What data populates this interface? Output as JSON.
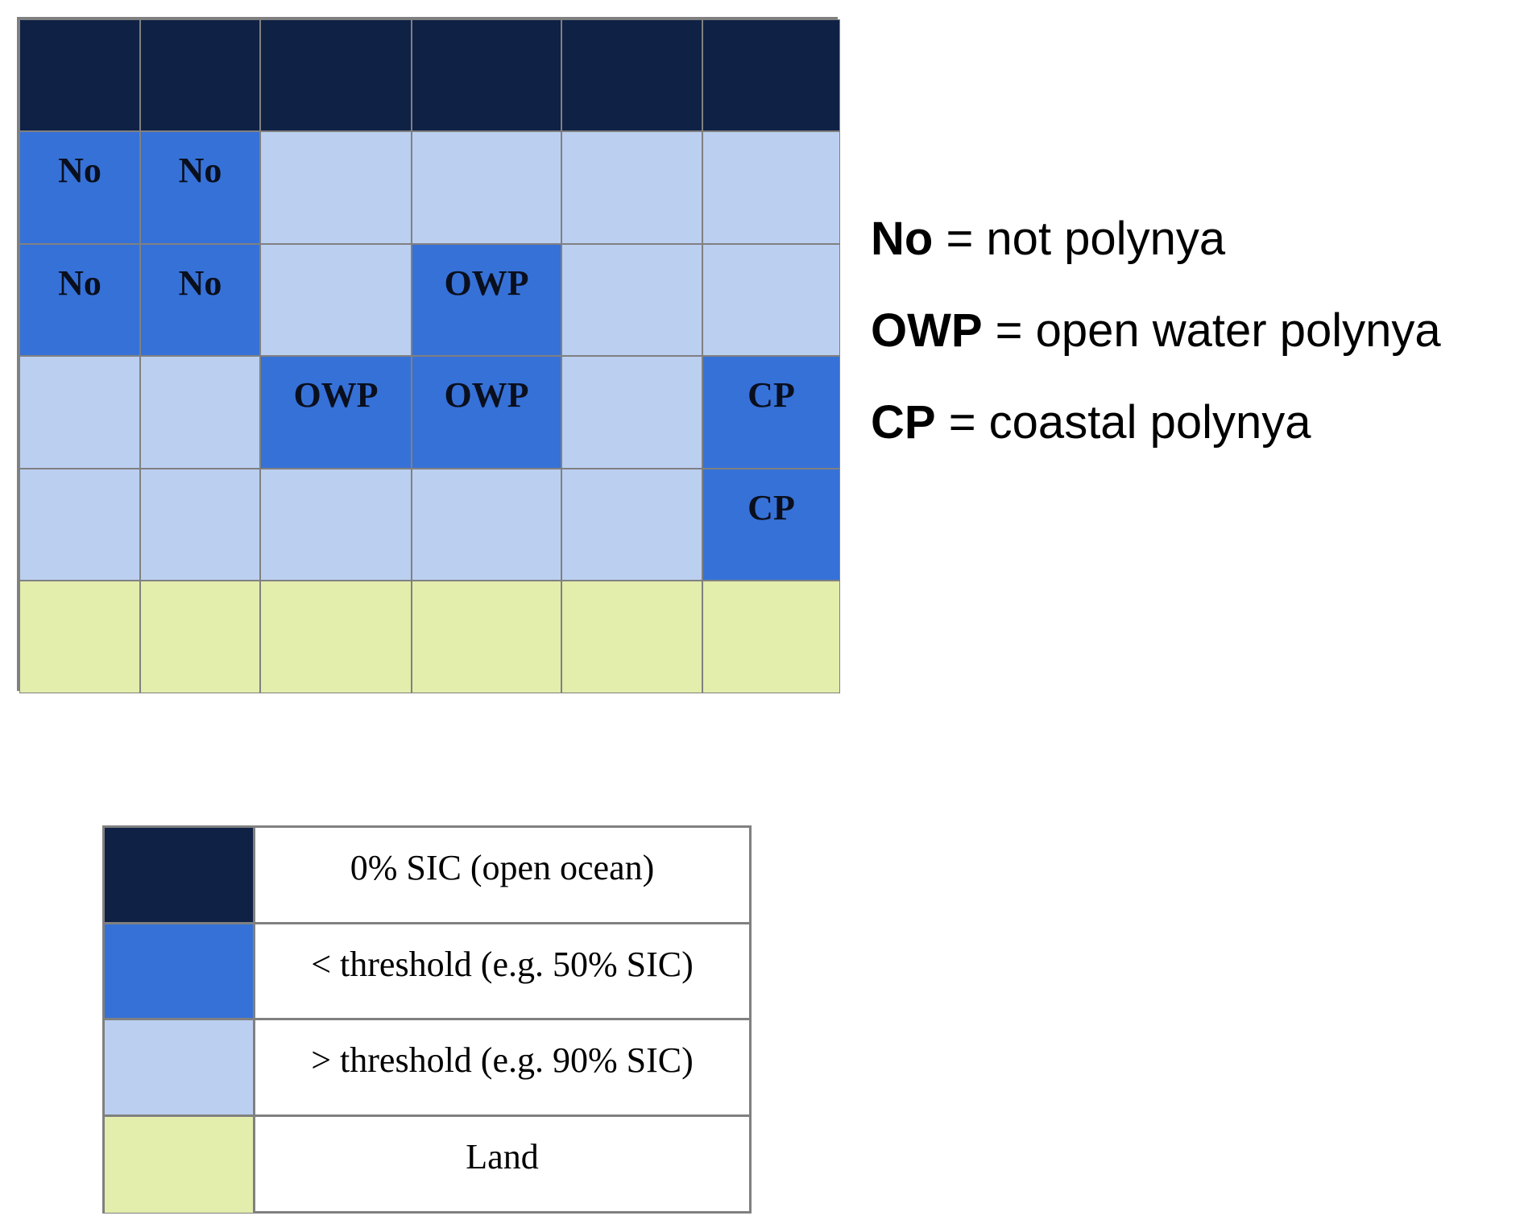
{
  "colors": {
    "open_ocean": "#0f2145",
    "below_threshold": "#3671d7",
    "above_threshold": "#bbcff0",
    "land": "#e3edac",
    "border": "#808080"
  },
  "grid": {
    "rows": [
      [
        {
          "c": "open_ocean",
          "t": ""
        },
        {
          "c": "open_ocean",
          "t": ""
        },
        {
          "c": "open_ocean",
          "t": ""
        },
        {
          "c": "open_ocean",
          "t": ""
        },
        {
          "c": "open_ocean",
          "t": ""
        },
        {
          "c": "open_ocean",
          "t": ""
        }
      ],
      [
        {
          "c": "below_threshold",
          "t": "No"
        },
        {
          "c": "below_threshold",
          "t": "No"
        },
        {
          "c": "above_threshold",
          "t": ""
        },
        {
          "c": "above_threshold",
          "t": ""
        },
        {
          "c": "above_threshold",
          "t": ""
        },
        {
          "c": "above_threshold",
          "t": ""
        }
      ],
      [
        {
          "c": "below_threshold",
          "t": "No"
        },
        {
          "c": "below_threshold",
          "t": "No"
        },
        {
          "c": "above_threshold",
          "t": ""
        },
        {
          "c": "below_threshold",
          "t": "OWP"
        },
        {
          "c": "above_threshold",
          "t": ""
        },
        {
          "c": "above_threshold",
          "t": ""
        }
      ],
      [
        {
          "c": "above_threshold",
          "t": ""
        },
        {
          "c": "above_threshold",
          "t": ""
        },
        {
          "c": "below_threshold",
          "t": "OWP"
        },
        {
          "c": "below_threshold",
          "t": "OWP"
        },
        {
          "c": "above_threshold",
          "t": ""
        },
        {
          "c": "below_threshold",
          "t": "CP"
        }
      ],
      [
        {
          "c": "above_threshold",
          "t": ""
        },
        {
          "c": "above_threshold",
          "t": ""
        },
        {
          "c": "above_threshold",
          "t": ""
        },
        {
          "c": "above_threshold",
          "t": ""
        },
        {
          "c": "above_threshold",
          "t": ""
        },
        {
          "c": "below_threshold",
          "t": "CP"
        }
      ],
      [
        {
          "c": "land",
          "t": ""
        },
        {
          "c": "land",
          "t": ""
        },
        {
          "c": "land",
          "t": ""
        },
        {
          "c": "land",
          "t": ""
        },
        {
          "c": "land",
          "t": ""
        },
        {
          "c": "land",
          "t": ""
        }
      ]
    ]
  },
  "key": [
    {
      "abbr": "No",
      "desc": " = not polynya"
    },
    {
      "abbr": "OWP",
      "desc": " = open water polynya"
    },
    {
      "abbr": "CP",
      "desc": " = coastal polynya"
    }
  ],
  "legend": [
    {
      "c": "open_ocean",
      "label": "0% SIC (open ocean)"
    },
    {
      "c": "below_threshold",
      "label": "< threshold (e.g. 50% SIC)"
    },
    {
      "c": "above_threshold",
      "label": "> threshold (e.g. 90% SIC)"
    },
    {
      "c": "land",
      "label": "Land"
    }
  ]
}
